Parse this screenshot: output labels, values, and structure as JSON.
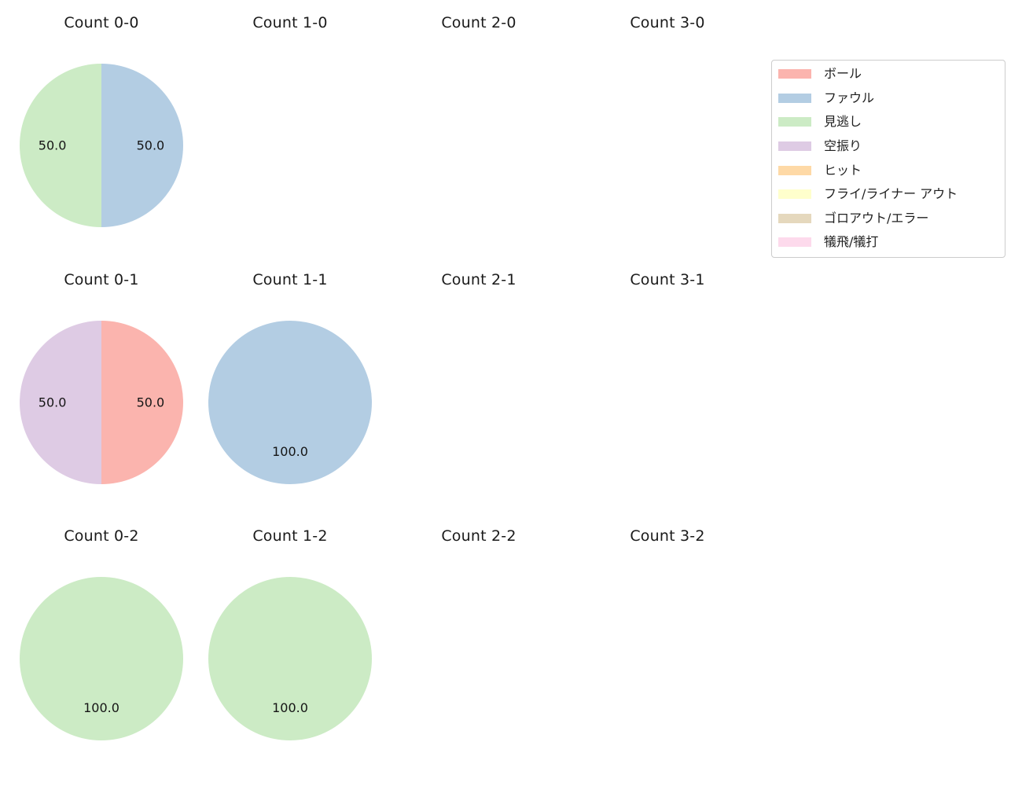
{
  "figure": {
    "background": "#ffffff",
    "grid": {
      "rows": 3,
      "cols": 4
    }
  },
  "legend": {
    "items": [
      {
        "label": "ボール",
        "color": "#fbb4ae"
      },
      {
        "label": "ファウル",
        "color": "#b3cde3"
      },
      {
        "label": "見逃し",
        "color": "#ccebc5"
      },
      {
        "label": "空振り",
        "color": "#decbe4"
      },
      {
        "label": "ヒット",
        "color": "#fed9a6"
      },
      {
        "label": "フライ/ライナー アウト",
        "color": "#ffffcc"
      },
      {
        "label": "ゴロアウト/エラー",
        "color": "#e5d8bd"
      },
      {
        "label": "犠飛/犠打",
        "color": "#fddaec"
      }
    ]
  },
  "chart_data": [
    {
      "type": "pie",
      "title": "Count 0-0",
      "start_angle": 90,
      "direction": "clockwise",
      "unit": "percent",
      "slices": [
        {
          "label": "ファウル",
          "value": 50.0,
          "pct_label": "50.0",
          "color": "#b3cde3"
        },
        {
          "label": "見逃し",
          "value": 50.0,
          "pct_label": "50.0",
          "color": "#ccebc5"
        }
      ]
    },
    {
      "type": "pie",
      "title": "Count 1-0",
      "start_angle": 90,
      "direction": "clockwise",
      "unit": "percent",
      "slices": []
    },
    {
      "type": "pie",
      "title": "Count 2-0",
      "start_angle": 90,
      "direction": "clockwise",
      "unit": "percent",
      "slices": []
    },
    {
      "type": "pie",
      "title": "Count 3-0",
      "start_angle": 90,
      "direction": "clockwise",
      "unit": "percent",
      "slices": []
    },
    {
      "type": "pie",
      "title": "Count 0-1",
      "start_angle": 90,
      "direction": "clockwise",
      "unit": "percent",
      "slices": [
        {
          "label": "ボール",
          "value": 50.0,
          "pct_label": "50.0",
          "color": "#fbb4ae"
        },
        {
          "label": "空振り",
          "value": 50.0,
          "pct_label": "50.0",
          "color": "#decbe4"
        }
      ]
    },
    {
      "type": "pie",
      "title": "Count 1-1",
      "start_angle": 90,
      "direction": "clockwise",
      "unit": "percent",
      "slices": [
        {
          "label": "ファウル",
          "value": 100.0,
          "pct_label": "100.0",
          "color": "#b3cde3"
        }
      ]
    },
    {
      "type": "pie",
      "title": "Count 2-1",
      "start_angle": 90,
      "direction": "clockwise",
      "unit": "percent",
      "slices": []
    },
    {
      "type": "pie",
      "title": "Count 3-1",
      "start_angle": 90,
      "direction": "clockwise",
      "unit": "percent",
      "slices": []
    },
    {
      "type": "pie",
      "title": "Count 0-2",
      "start_angle": 90,
      "direction": "clockwise",
      "unit": "percent",
      "slices": [
        {
          "label": "見逃し",
          "value": 100.0,
          "pct_label": "100.0",
          "color": "#ccebc5"
        }
      ]
    },
    {
      "type": "pie",
      "title": "Count 1-2",
      "start_angle": 90,
      "direction": "clockwise",
      "unit": "percent",
      "slices": [
        {
          "label": "見逃し",
          "value": 100.0,
          "pct_label": "100.0",
          "color": "#ccebc5"
        }
      ]
    },
    {
      "type": "pie",
      "title": "Count 2-2",
      "start_angle": 90,
      "direction": "clockwise",
      "unit": "percent",
      "slices": []
    },
    {
      "type": "pie",
      "title": "Count 3-2",
      "start_angle": 90,
      "direction": "clockwise",
      "unit": "percent",
      "slices": []
    }
  ]
}
